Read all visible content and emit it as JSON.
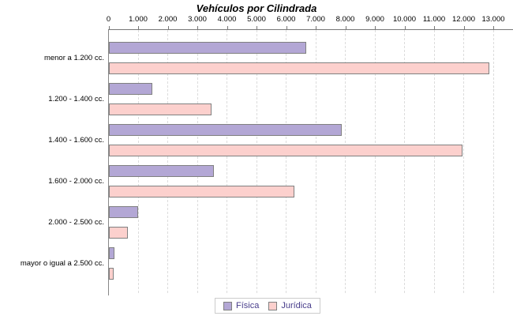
{
  "title": "Vehículos por Cilindrada",
  "colors": {
    "fisica_fill": "#b3a7d5",
    "juridica_fill": "#fcd0cd",
    "bar_border": "#808080",
    "axis_line": "#777777",
    "gridline": "#dcdcdc",
    "legend_text": "#483d8b",
    "legend_border": "#cccccc",
    "background": "#ffffff"
  },
  "chart_data": {
    "type": "bar",
    "orientation": "horizontal",
    "title": "Vehículos por Cilindrada",
    "categories": [
      "menor a 1.200 cc.",
      "1.200 - 1.400 cc.",
      "1.400 - 1.600 cc.",
      "1.600 - 2.000 cc.",
      "2.000 - 2.500 cc.",
      "mayor o igual a 2.500 cc."
    ],
    "series": [
      {
        "name": "Física",
        "color": "#b3a7d5",
        "values": [
          6600,
          1400,
          7800,
          3500,
          940,
          130
        ]
      },
      {
        "name": "Jurídica",
        "color": "#fcd0cd",
        "values": [
          12800,
          3400,
          11900,
          6200,
          580,
          110
        ]
      }
    ],
    "x_axis": {
      "position": "top",
      "tick_labels": [
        "0",
        "1.000",
        "2.000",
        "3.000",
        "4.000",
        "5.000",
        "6.000",
        "7.000",
        "8.000",
        "9.000",
        "10.000",
        "11.000",
        "12.000",
        "13.000"
      ],
      "tick_values": [
        0,
        1000,
        2000,
        3000,
        4000,
        5000,
        6000,
        7000,
        8000,
        9000,
        10000,
        11000,
        12000,
        13000
      ],
      "xlim": [
        0,
        13650
      ]
    },
    "grid": "vertical-dashed",
    "legend": {
      "position": "bottom",
      "entries": [
        "Física",
        "Jurídica"
      ]
    }
  }
}
